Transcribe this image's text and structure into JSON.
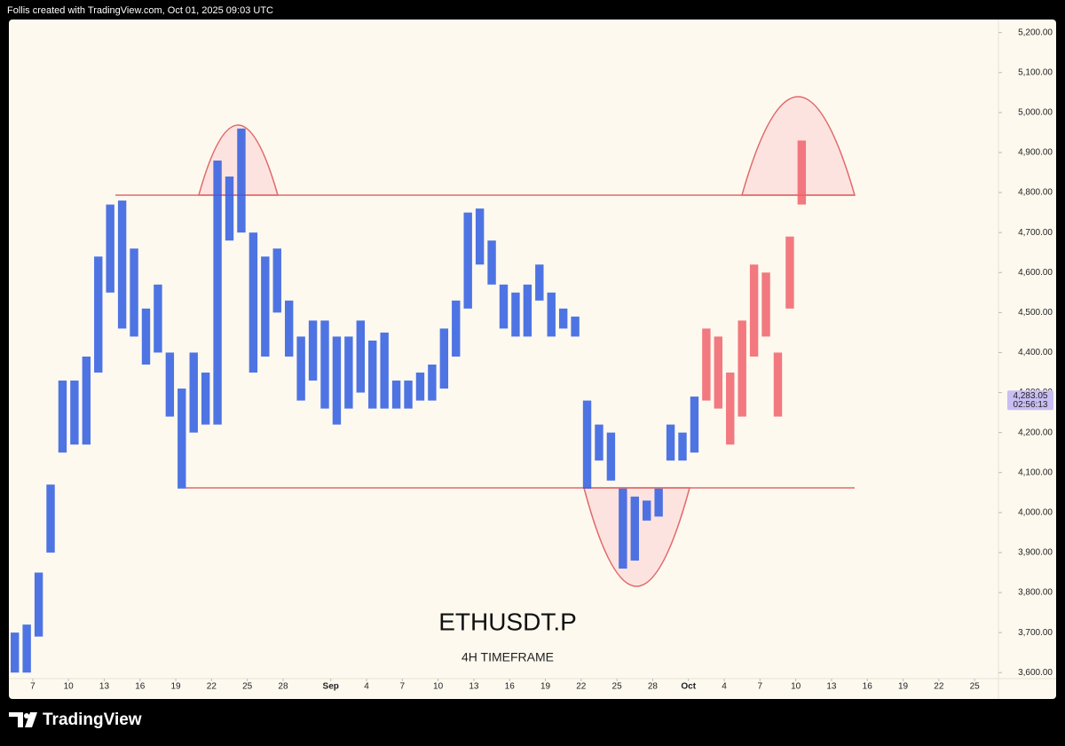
{
  "header": {
    "text": "Follis created with TradingView.com, Oct 01, 2025 09:03 UTC"
  },
  "footer": {
    "brand": "TradingView"
  },
  "chart_data": {
    "type": "range-bar",
    "title": "ETHUSDT.P",
    "subtitle": "4H TIMEFRAME",
    "xlim": [
      "2025-08-05",
      "2025-10-27"
    ],
    "ylim": [
      3585,
      5237
    ],
    "xticks": [
      {
        "value": "2025-08-07",
        "label": "7"
      },
      {
        "value": "2025-08-10",
        "label": "10"
      },
      {
        "value": "2025-08-13",
        "label": "13"
      },
      {
        "value": "2025-08-16",
        "label": "16"
      },
      {
        "value": "2025-08-19",
        "label": "19"
      },
      {
        "value": "2025-08-22",
        "label": "22"
      },
      {
        "value": "2025-08-25",
        "label": "25"
      },
      {
        "value": "2025-08-28",
        "label": "28"
      },
      {
        "value": "2025-09-01",
        "label": "Sep"
      },
      {
        "value": "2025-09-04",
        "label": "4"
      },
      {
        "value": "2025-09-07",
        "label": "7"
      },
      {
        "value": "2025-09-10",
        "label": "10"
      },
      {
        "value": "2025-09-13",
        "label": "13"
      },
      {
        "value": "2025-09-16",
        "label": "16"
      },
      {
        "value": "2025-09-19",
        "label": "19"
      },
      {
        "value": "2025-09-22",
        "label": "22"
      },
      {
        "value": "2025-09-25",
        "label": "25"
      },
      {
        "value": "2025-09-28",
        "label": "28"
      },
      {
        "value": "2025-10-01",
        "label": "Oct"
      },
      {
        "value": "2025-10-04",
        "label": "4"
      },
      {
        "value": "2025-10-07",
        "label": "7"
      },
      {
        "value": "2025-10-10",
        "label": "10"
      },
      {
        "value": "2025-10-13",
        "label": "13"
      },
      {
        "value": "2025-10-16",
        "label": "16"
      },
      {
        "value": "2025-10-19",
        "label": "19"
      },
      {
        "value": "2025-10-22",
        "label": "22"
      },
      {
        "value": "2025-10-25",
        "label": "25"
      }
    ],
    "yticks": [
      {
        "value": 3600,
        "label": "3,600.00"
      },
      {
        "value": 3700,
        "label": "3,700.00"
      },
      {
        "value": 3800,
        "label": "3,800.00"
      },
      {
        "value": 3900,
        "label": "3,900.00"
      },
      {
        "value": 4000,
        "label": "4,000.00"
      },
      {
        "value": 4100,
        "label": "4,100.00"
      },
      {
        "value": 4200,
        "label": "4,200.00"
      },
      {
        "value": 4300,
        "label": "4,300.00"
      },
      {
        "value": 4400,
        "label": "4,400.00"
      },
      {
        "value": 4500,
        "label": "4,500.00"
      },
      {
        "value": 4600,
        "label": "4,600.00"
      },
      {
        "value": 4700,
        "label": "4,700.00"
      },
      {
        "value": 4800,
        "label": "4,800.00"
      },
      {
        "value": 4900,
        "label": "4,900.00"
      },
      {
        "value": 5000,
        "label": "5,000.00"
      },
      {
        "value": 5100,
        "label": "5,100.00"
      },
      {
        "value": 5200,
        "label": "5,200.00"
      }
    ],
    "last_price": {
      "value": 4283.05,
      "label": "4,283.05",
      "countdown": "02:56:13",
      "color": "#c9bdf2"
    },
    "series": [
      {
        "color": "#2f5de0",
        "x": [
          "2025-08-05",
          "2025-08-06",
          "2025-08-07",
          "2025-08-08",
          "2025-08-09",
          "2025-08-10",
          "2025-08-11",
          "2025-08-12",
          "2025-08-13",
          "2025-08-14",
          "2025-08-15",
          "2025-08-16",
          "2025-08-17",
          "2025-08-18",
          "2025-08-19",
          "2025-08-20",
          "2025-08-21",
          "2025-08-22",
          "2025-08-23",
          "2025-08-24",
          "2025-08-25",
          "2025-08-26",
          "2025-08-27",
          "2025-08-28",
          "2025-08-29",
          "2025-08-30",
          "2025-08-31",
          "2025-09-01",
          "2025-09-02",
          "2025-09-03",
          "2025-09-04",
          "2025-09-05",
          "2025-09-06",
          "2025-09-07",
          "2025-09-08",
          "2025-09-09",
          "2025-09-10",
          "2025-09-11",
          "2025-09-12",
          "2025-09-13",
          "2025-09-14",
          "2025-09-15",
          "2025-09-16",
          "2025-09-17",
          "2025-09-18",
          "2025-09-19",
          "2025-09-20",
          "2025-09-21",
          "2025-09-22",
          "2025-09-23",
          "2025-09-24",
          "2025-09-25",
          "2025-09-26",
          "2025-09-27",
          "2025-09-28",
          "2025-09-29",
          "2025-09-30",
          "2025-10-01"
        ],
        "low": [
          3600,
          3600,
          3690,
          3900,
          4150,
          4170,
          4170,
          4350,
          4550,
          4460,
          4440,
          4370,
          4400,
          4240,
          4060,
          4200,
          4220,
          4220,
          4680,
          4700,
          4350,
          4390,
          4500,
          4390,
          4280,
          4330,
          4260,
          4220,
          4260,
          4300,
          4260,
          4260,
          4260,
          4260,
          4280,
          4280,
          4310,
          4390,
          4510,
          4620,
          4570,
          4460,
          4440,
          4440,
          4530,
          4440,
          4460,
          4440,
          4060,
          4130,
          4080,
          3860,
          3880,
          3980,
          3990,
          4130,
          4130,
          4150
        ],
        "high": [
          3700,
          3720,
          3850,
          4070,
          4330,
          4330,
          4390,
          4640,
          4770,
          4780,
          4660,
          4510,
          4570,
          4400,
          4310,
          4400,
          4350,
          4880,
          4840,
          4960,
          4700,
          4640,
          4660,
          4530,
          4440,
          4480,
          4480,
          4440,
          4440,
          4480,
          4430,
          4450,
          4330,
          4330,
          4350,
          4370,
          4460,
          4530,
          4750,
          4760,
          4680,
          4570,
          4550,
          4570,
          4620,
          4550,
          4510,
          4490,
          4280,
          4220,
          4200,
          4060,
          4040,
          4030,
          4060,
          4220,
          4200,
          4290
        ]
      },
      {
        "color": "#f0636b",
        "x": [
          "2025-10-02",
          "2025-10-03",
          "2025-10-04",
          "2025-10-05",
          "2025-10-06",
          "2025-10-07",
          "2025-10-08",
          "2025-10-09",
          "2025-10-10"
        ],
        "low": [
          4280,
          4260,
          4170,
          4240,
          4390,
          4440,
          4240,
          4510,
          4770
        ],
        "high": [
          4460,
          4440,
          4350,
          4480,
          4620,
          4600,
          4400,
          4690,
          4930
        ]
      }
    ]
  }
}
